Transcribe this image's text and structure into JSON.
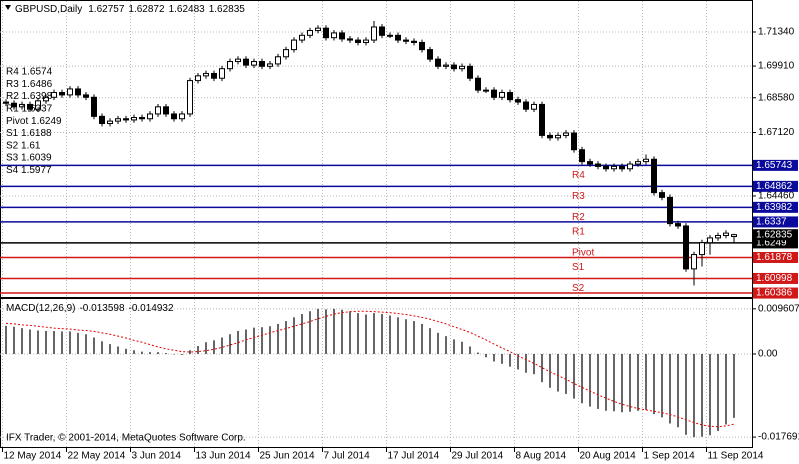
{
  "chart_data": [
    {
      "type": "candlestick",
      "title": "GBPUSD,Daily",
      "footer": "IFX Trader, © 2001-2014, MetaQuotes Software Corp.",
      "categories": [
        "12 May 2014",
        null,
        null,
        null,
        null,
        null,
        null,
        null,
        "22 May 2014",
        null,
        null,
        null,
        null,
        null,
        null,
        null,
        "3 Jun 2014",
        null,
        null,
        null,
        null,
        null,
        null,
        null,
        "13 Jun 2014",
        null,
        null,
        null,
        null,
        null,
        null,
        null,
        "25 Jun 2014",
        null,
        null,
        null,
        null,
        null,
        null,
        null,
        "7 Jul 2014",
        null,
        null,
        null,
        null,
        null,
        null,
        null,
        "17 Jul 2014",
        null,
        null,
        null,
        null,
        null,
        null,
        null,
        "29 Jul 2014",
        null,
        null,
        null,
        null,
        null,
        null,
        null,
        "8 Aug 2014",
        null,
        null,
        null,
        null,
        null,
        null,
        null,
        "20 Aug 2014",
        null,
        null,
        null,
        null,
        null,
        null,
        null,
        "1 Sep 2014",
        null,
        null,
        null,
        null,
        null,
        null,
        null,
        "11 Sep 2014",
        null,
        null,
        null
      ],
      "open": [
        1.684,
        1.6835,
        1.682,
        1.683,
        1.681,
        1.6845,
        1.686,
        1.688,
        1.687,
        1.6895,
        1.687,
        1.686,
        1.678,
        1.675,
        1.676,
        1.677,
        1.6765,
        1.6775,
        1.677,
        1.679,
        1.682,
        1.679,
        1.677,
        1.679,
        1.693,
        1.695,
        1.696,
        1.694,
        1.698,
        1.701,
        1.702,
        1.6995,
        1.701,
        1.699,
        1.7,
        1.703,
        1.706,
        1.71,
        1.712,
        1.714,
        1.715,
        1.711,
        1.713,
        1.7105,
        1.71,
        1.709,
        1.71,
        1.7155,
        1.712,
        1.712,
        1.71,
        1.7095,
        1.709,
        1.706,
        1.702,
        1.699,
        1.6995,
        1.698,
        1.699,
        1.694,
        1.689,
        1.689,
        1.686,
        1.688,
        1.685,
        1.684,
        1.681,
        1.683,
        1.67,
        1.669,
        1.67,
        1.671,
        1.664,
        1.659,
        1.658,
        1.657,
        1.656,
        1.657,
        1.656,
        1.658,
        1.659,
        1.66,
        1.646,
        1.644,
        1.633,
        1.632,
        1.614,
        1.62,
        1.625,
        1.627,
        1.628,
        1.62757
      ],
      "high": [
        1.6852,
        1.6847,
        1.6842,
        1.6842,
        1.6857,
        1.6872,
        1.6892,
        1.6892,
        1.6907,
        1.6907,
        1.6882,
        1.6872,
        1.6792,
        1.6772,
        1.6782,
        1.6782,
        1.6787,
        1.6787,
        1.6802,
        1.6832,
        1.6832,
        1.6802,
        1.6802,
        1.6942,
        1.6962,
        1.6972,
        1.6972,
        1.6992,
        1.7022,
        1.7032,
        1.7032,
        1.7022,
        1.7022,
        1.7012,
        1.7042,
        1.7072,
        1.7112,
        1.7132,
        1.7152,
        1.7162,
        1.7162,
        1.7142,
        1.7142,
        1.7117,
        1.7112,
        1.7112,
        1.718,
        1.7167,
        1.7132,
        1.7132,
        1.7112,
        1.7107,
        1.7102,
        1.7072,
        1.7032,
        1.7007,
        1.7007,
        1.7002,
        1.7002,
        1.6952,
        1.6902,
        1.6902,
        1.6892,
        1.6892,
        1.6862,
        1.6852,
        1.6842,
        1.6842,
        1.6712,
        1.6712,
        1.6722,
        1.6722,
        1.6652,
        1.6602,
        1.6592,
        1.6582,
        1.6582,
        1.6582,
        1.6592,
        1.6602,
        1.662,
        1.6612,
        1.6472,
        1.6452,
        1.6342,
        1.6332,
        1.6212,
        1.6262,
        1.6282,
        1.6292,
        1.6302,
        1.62872
      ],
      "low": [
        1.6823,
        1.6808,
        1.6808,
        1.6798,
        1.6798,
        1.6833,
        1.6848,
        1.6858,
        1.6858,
        1.6858,
        1.6848,
        1.6768,
        1.6738,
        1.6738,
        1.6748,
        1.6753,
        1.6753,
        1.6758,
        1.6758,
        1.6778,
        1.6778,
        1.6758,
        1.6758,
        1.6778,
        1.6918,
        1.6938,
        1.6928,
        1.6928,
        1.6968,
        1.6998,
        1.6983,
        1.6983,
        1.6978,
        1.6978,
        1.6988,
        1.7018,
        1.7048,
        1.7088,
        1.7108,
        1.7128,
        1.7098,
        1.7098,
        1.7093,
        1.7088,
        1.7078,
        1.7078,
        1.7088,
        1.7108,
        1.7108,
        1.7088,
        1.7083,
        1.7078,
        1.7048,
        1.7008,
        1.6978,
        1.6978,
        1.6968,
        1.6968,
        1.6928,
        1.6878,
        1.6878,
        1.6848,
        1.6848,
        1.6838,
        1.6828,
        1.6798,
        1.6798,
        1.6688,
        1.6678,
        1.6678,
        1.6688,
        1.6628,
        1.6578,
        1.6568,
        1.6558,
        1.6548,
        1.6548,
        1.6548,
        1.6548,
        1.6568,
        1.6578,
        1.6448,
        1.6428,
        1.6318,
        1.6308,
        1.6128,
        1.607,
        1.615,
        1.62,
        1.6258,
        1.6268,
        1.62483
      ],
      "close": [
        1.6835,
        1.682,
        1.683,
        1.681,
        1.6845,
        1.686,
        1.688,
        1.687,
        1.6895,
        1.687,
        1.686,
        1.678,
        1.675,
        1.676,
        1.677,
        1.6765,
        1.6775,
        1.677,
        1.679,
        1.682,
        1.679,
        1.677,
        1.679,
        1.693,
        1.695,
        1.696,
        1.694,
        1.698,
        1.701,
        1.702,
        1.6995,
        1.701,
        1.699,
        1.7,
        1.703,
        1.706,
        1.71,
        1.712,
        1.714,
        1.715,
        1.711,
        1.713,
        1.7105,
        1.71,
        1.709,
        1.71,
        1.7155,
        1.712,
        1.712,
        1.71,
        1.7095,
        1.709,
        1.706,
        1.702,
        1.699,
        1.6995,
        1.698,
        1.699,
        1.694,
        1.689,
        1.689,
        1.686,
        1.688,
        1.685,
        1.684,
        1.681,
        1.683,
        1.67,
        1.669,
        1.67,
        1.671,
        1.664,
        1.659,
        1.658,
        1.657,
        1.656,
        1.657,
        1.656,
        1.658,
        1.659,
        1.66,
        1.646,
        1.644,
        1.633,
        1.632,
        1.614,
        1.62,
        1.625,
        1.627,
        1.628,
        1.629,
        1.62835
      ],
      "up_color": "#ffffff",
      "down_color": "#000000",
      "ylim": [
        1.6022,
        1.7264
      ],
      "yticks": [
        {
          "value": 1.7134,
          "label": "1.71340"
        },
        {
          "value": 1.6991,
          "label": "1.69910"
        },
        {
          "value": 1.6858,
          "label": "1.68580"
        },
        {
          "value": 1.6712,
          "label": "1.67120"
        },
        {
          "value": 1.6446,
          "label": "1.64460"
        }
      ],
      "grid": true,
      "levels": [
        {
          "name": "R4",
          "value": 1.65743,
          "color": "#0a0a9c",
          "legend": "R4 1.6574"
        },
        {
          "name": "R3",
          "value": 1.64862,
          "color": "#0a0a9c",
          "legend": "R3 1.6486"
        },
        {
          "name": "R2",
          "value": 1.63982,
          "color": "#0a0a9c",
          "legend": "R2 1.6398"
        },
        {
          "name": "R1",
          "value": 1.6337,
          "color": "#0a0a9c",
          "legend": "R1 1.6337"
        },
        {
          "name": "Pivot",
          "value": 1.6249,
          "color": "#000000",
          "legend": "Pivot 1.6249"
        },
        {
          "name": "S1",
          "value": 1.61878,
          "color": "#d01818",
          "legend": "S1 1.6188"
        },
        {
          "name": "S2",
          "value": 1.60998,
          "color": "#d01818",
          "legend": "S2 1.61"
        },
        {
          "name": "S3",
          "value": 1.60386,
          "color": "#d01818",
          "legend": "S3 1.6039"
        },
        {
          "name": "S4",
          "value": 1.5977,
          "color": "#d01818",
          "legend": "S4 1.5977"
        }
      ]
    },
    {
      "type": "macd",
      "title": "MACD(12,26,9)",
      "histogram": {
        "color": "#000000",
        "values": [
          0.006,
          0.0058,
          0.0055,
          0.0052,
          0.005,
          0.0049,
          0.0049,
          0.0048,
          0.0048,
          0.0045,
          0.0042,
          0.0035,
          0.0027,
          0.0021,
          0.0016,
          0.0011,
          0.0008,
          0.0005,
          0.0004,
          0.0004,
          0.0002,
          -0.0001,
          -0.0002,
          0.0008,
          0.0017,
          0.0025,
          0.0029,
          0.0035,
          0.0042,
          0.0049,
          0.0052,
          0.0056,
          0.0057,
          0.0059,
          0.0064,
          0.007,
          0.0078,
          0.0085,
          0.0091,
          0.0096,
          0.0095,
          0.0096,
          0.0094,
          0.0091,
          0.0087,
          0.0084,
          0.0087,
          0.0085,
          0.0082,
          0.0078,
          0.0074,
          0.007,
          0.0064,
          0.0055,
          0.0045,
          0.0038,
          0.0031,
          0.0026,
          0.0016,
          0.0003,
          -0.0007,
          -0.0016,
          -0.0021,
          -0.0027,
          -0.0033,
          -0.004,
          -0.0043,
          -0.006,
          -0.0072,
          -0.008,
          -0.0085,
          -0.0095,
          -0.0105,
          -0.0112,
          -0.0117,
          -0.0121,
          -0.0122,
          -0.0124,
          -0.0123,
          -0.0121,
          -0.0119,
          -0.0128,
          -0.0135,
          -0.0148,
          -0.0156,
          -0.0172,
          -0.0177,
          -0.0176,
          -0.0173,
          -0.0164,
          -0.015,
          -0.013598
        ]
      },
      "signal": {
        "color": "#e00000",
        "values": [
          0.0065,
          0.0064,
          0.0062,
          0.0061,
          0.0059,
          0.0057,
          0.0055,
          0.0054,
          0.0053,
          0.0051,
          0.005,
          0.0048,
          0.0045,
          0.0042,
          0.0038,
          0.0034,
          0.0029,
          0.0025,
          0.002,
          0.0015,
          0.0011,
          0.0008,
          0.0005,
          0.0004,
          0.0005,
          0.0007,
          0.001,
          0.0014,
          0.0019,
          0.0024,
          0.003,
          0.0035,
          0.004,
          0.0045,
          0.005,
          0.0054,
          0.0059,
          0.0064,
          0.0069,
          0.0075,
          0.008,
          0.0085,
          0.0088,
          0.009,
          0.0091,
          0.0091,
          0.009,
          0.0089,
          0.0088,
          0.0086,
          0.0084,
          0.0081,
          0.0078,
          0.0074,
          0.0069,
          0.0064,
          0.0058,
          0.0052,
          0.0046,
          0.0038,
          0.003,
          0.0021,
          0.0013,
          0.0005,
          -0.0004,
          -0.0012,
          -0.002,
          -0.0029,
          -0.0038,
          -0.0046,
          -0.0054,
          -0.0063,
          -0.0071,
          -0.0079,
          -0.0087,
          -0.0094,
          -0.0101,
          -0.0107,
          -0.0112,
          -0.0116,
          -0.0119,
          -0.0122,
          -0.0125,
          -0.0129,
          -0.0134,
          -0.014,
          -0.0146,
          -0.0151,
          -0.0154,
          -0.0155,
          -0.0153,
          -0.014932
        ]
      },
      "ylim": [
        -0.0198,
        0.0117
      ],
      "yticks": [
        0.009607,
        {
          "value": 0,
          "label": "0.00"
        },
        -0.017691
      ]
    }
  ]
}
